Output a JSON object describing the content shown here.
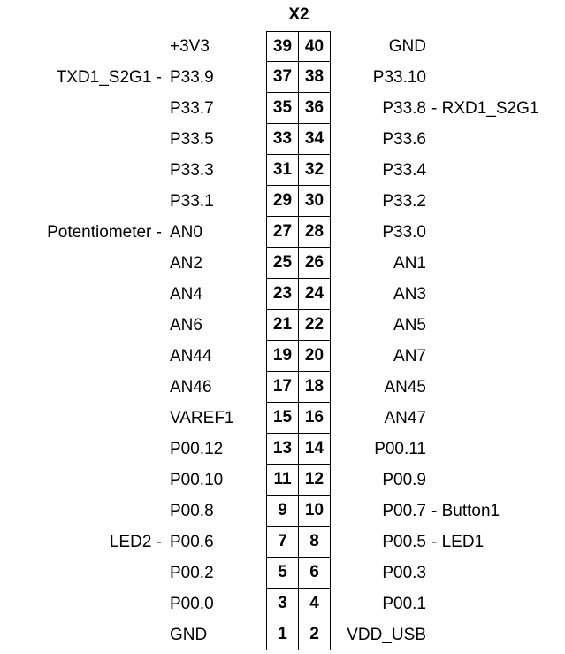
{
  "header": {
    "title": "X2"
  },
  "rows": [
    {
      "left_pin": "39",
      "left_name": "+3V3",
      "left_extra": "",
      "right_pin": "40",
      "right_name": "GND",
      "right_extra": ""
    },
    {
      "left_pin": "37",
      "left_name": "P33.9",
      "left_extra": "TXD1_S2G1 -",
      "right_pin": "38",
      "right_name": "P33.10",
      "right_extra": ""
    },
    {
      "left_pin": "35",
      "left_name": "P33.7",
      "left_extra": "",
      "right_pin": "36",
      "right_name": "P33.8",
      "right_extra": "- RXD1_S2G1"
    },
    {
      "left_pin": "33",
      "left_name": "P33.5",
      "left_extra": "",
      "right_pin": "34",
      "right_name": "P33.6",
      "right_extra": ""
    },
    {
      "left_pin": "31",
      "left_name": "P33.3",
      "left_extra": "",
      "right_pin": "32",
      "right_name": "P33.4",
      "right_extra": ""
    },
    {
      "left_pin": "29",
      "left_name": "P33.1",
      "left_extra": "",
      "right_pin": "30",
      "right_name": "P33.2",
      "right_extra": ""
    },
    {
      "left_pin": "27",
      "left_name": "AN0",
      "left_extra": "Potentiometer -",
      "right_pin": "28",
      "right_name": "P33.0",
      "right_extra": ""
    },
    {
      "left_pin": "25",
      "left_name": "AN2",
      "left_extra": "",
      "right_pin": "26",
      "right_name": "AN1",
      "right_extra": ""
    },
    {
      "left_pin": "23",
      "left_name": "AN4",
      "left_extra": "",
      "right_pin": "24",
      "right_name": "AN3",
      "right_extra": ""
    },
    {
      "left_pin": "21",
      "left_name": "AN6",
      "left_extra": "",
      "right_pin": "22",
      "right_name": "AN5",
      "right_extra": ""
    },
    {
      "left_pin": "19",
      "left_name": "AN44",
      "left_extra": "",
      "right_pin": "20",
      "right_name": "AN7",
      "right_extra": ""
    },
    {
      "left_pin": "17",
      "left_name": "AN46",
      "left_extra": "",
      "right_pin": "18",
      "right_name": "AN45",
      "right_extra": ""
    },
    {
      "left_pin": "15",
      "left_name": "VAREF1",
      "left_extra": "",
      "right_pin": "16",
      "right_name": "AN47",
      "right_extra": ""
    },
    {
      "left_pin": "13",
      "left_name": "P00.12",
      "left_extra": "",
      "right_pin": "14",
      "right_name": "P00.11",
      "right_extra": ""
    },
    {
      "left_pin": "11",
      "left_name": "P00.10",
      "left_extra": "",
      "right_pin": "12",
      "right_name": "P00.9",
      "right_extra": ""
    },
    {
      "left_pin": "9",
      "left_name": "P00.8",
      "left_extra": "",
      "right_pin": "10",
      "right_name": "P00.7",
      "right_extra": "- Button1"
    },
    {
      "left_pin": "7",
      "left_name": "P00.6",
      "left_extra": "LED2 -",
      "right_pin": "8",
      "right_name": "P00.5",
      "right_extra": "- LED1"
    },
    {
      "left_pin": "5",
      "left_name": "P00.2",
      "left_extra": "",
      "right_pin": "6",
      "right_name": "P00.3",
      "right_extra": ""
    },
    {
      "left_pin": "3",
      "left_name": "P00.0",
      "left_extra": "",
      "right_pin": "4",
      "right_name": "P00.1",
      "right_extra": ""
    },
    {
      "left_pin": "1",
      "left_name": "GND",
      "left_extra": "",
      "right_pin": "2",
      "right_name": "VDD_USB",
      "right_extra": ""
    }
  ]
}
